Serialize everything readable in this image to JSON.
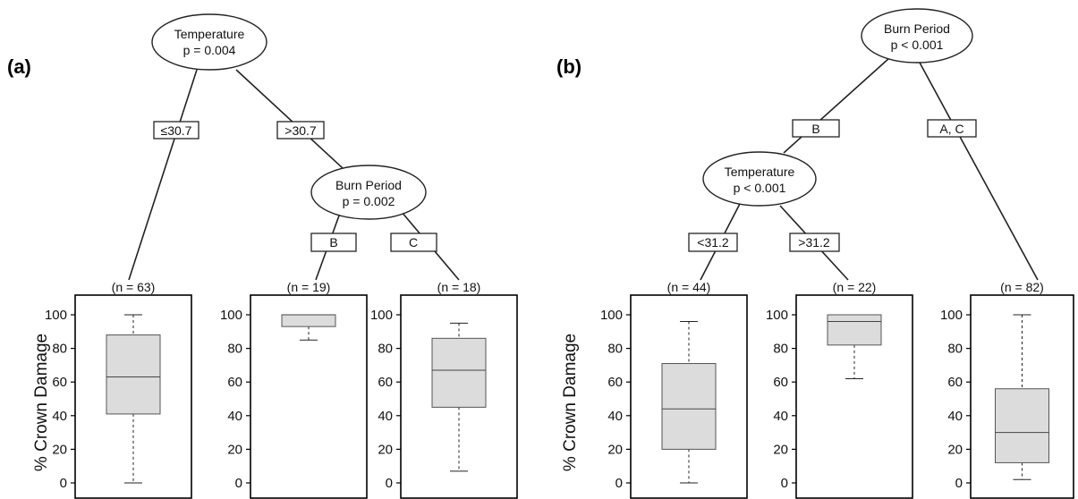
{
  "panel_a": {
    "label": "(a)",
    "root": {
      "name": "Temperature",
      "p": "p = 0.004"
    },
    "edge_left": "≤30.7",
    "edge_right": ">30.7",
    "inner": {
      "name": "Burn Period",
      "p": "p = 0.002"
    },
    "edge_inner_left": "B",
    "edge_inner_right": "C",
    "ylabel": "% Crown Damage",
    "leaves": [
      {
        "n": "(n = 63)",
        "stats": {
          "min": 0,
          "q1": 41,
          "median": 63,
          "q3": 88,
          "max": 100
        }
      },
      {
        "n": "(n = 19)",
        "stats": {
          "min": 85,
          "q1": 93,
          "median": 100,
          "q3": 100,
          "max": 100
        }
      },
      {
        "n": "(n = 18)",
        "stats": {
          "min": 7,
          "q1": 45,
          "median": 67,
          "q3": 86,
          "max": 95
        }
      }
    ]
  },
  "panel_b": {
    "label": "(b)",
    "root": {
      "name": "Burn Period",
      "p": "p < 0.001"
    },
    "edge_left": "B",
    "edge_right": "A, C",
    "inner": {
      "name": "Temperature",
      "p": "p < 0.001"
    },
    "edge_inner_left": "<31.2",
    "edge_inner_right": ">31.2",
    "ylabel": "% Crown Damage",
    "leaves": [
      {
        "n": "(n = 44)",
        "stats": {
          "min": 0,
          "q1": 20,
          "median": 44,
          "q3": 71,
          "max": 96
        }
      },
      {
        "n": "(n = 22)",
        "stats": {
          "min": 62,
          "q1": 82,
          "median": 96,
          "q3": 100,
          "max": 100
        }
      },
      {
        "n": "(n = 82)",
        "stats": {
          "min": 2,
          "q1": 12,
          "median": 30,
          "q3": 56,
          "max": 100
        }
      }
    ]
  },
  "yticks": [
    "0",
    "20",
    "40",
    "60",
    "80",
    "100"
  ],
  "colors": {
    "box_fill": "#dcdcdc",
    "line": "#222222"
  }
}
